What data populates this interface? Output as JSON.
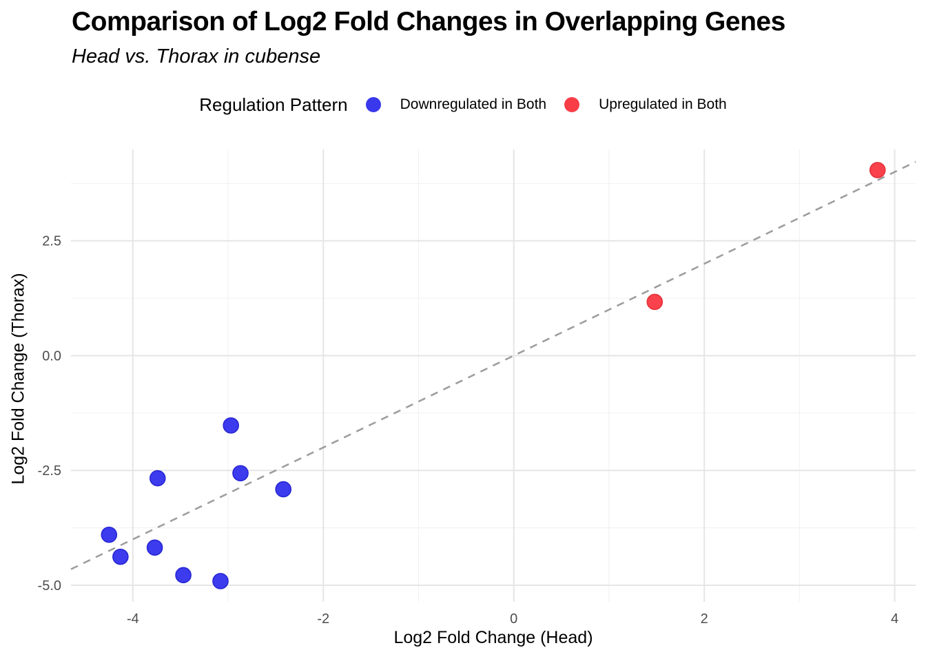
{
  "legend": {
    "title": "Regulation Pattern",
    "items": [
      {
        "label": "Downregulated in Both",
        "color": "#3A38EC"
      },
      {
        "label": "Upregulated in Both",
        "color": "#F83D47"
      }
    ]
  },
  "chart_data": {
    "type": "scatter",
    "title": "Comparison of Log2 Fold Changes in Overlapping Genes",
    "subtitle": "Head vs. Thorax in cubense",
    "xlabel": "Log2 Fold Change (Head)",
    "ylabel": "Log2 Fold Change (Thorax)",
    "xlim": [
      -4.65,
      4.22
    ],
    "ylim": [
      -5.36,
      4.49
    ],
    "x_ticks": {
      "values": [
        -4,
        -2,
        0,
        2,
        4
      ],
      "labels": [
        "-4",
        "-2",
        "0",
        "2",
        "4"
      ]
    },
    "y_ticks": {
      "values": [
        -5,
        -2.5,
        0,
        2.5
      ],
      "labels": [
        "-5.0",
        "-2.5",
        "0.0",
        "2.5"
      ]
    },
    "grid": {
      "major": true,
      "minor": true,
      "major_color": "#E5E5E5",
      "minor_color": "#F0F0F0"
    },
    "reference_line": {
      "kind": "identity",
      "equation": "y = x",
      "style": "dashed",
      "color": "#9E9E9E"
    },
    "legend_position": "top",
    "series": [
      {
        "name": "Downregulated in Both",
        "marker_color": "#3D3BEE",
        "marker_edge": "#2726D3",
        "points": [
          [
            -2.97,
            -1.52
          ],
          [
            -3.74,
            -2.67
          ],
          [
            -2.87,
            -2.56
          ],
          [
            -2.42,
            -2.91
          ],
          [
            -4.25,
            -3.9
          ],
          [
            -3.77,
            -4.18
          ],
          [
            -4.13,
            -4.38
          ],
          [
            -3.47,
            -4.78
          ],
          [
            -3.08,
            -4.91
          ]
        ]
      },
      {
        "name": "Upregulated in Both",
        "marker_color": "#F9424B",
        "marker_edge": "#E63039",
        "points": [
          [
            1.48,
            1.17
          ],
          [
            3.82,
            4.04
          ]
        ]
      }
    ],
    "tick_label_color": "#4D4D4D"
  }
}
